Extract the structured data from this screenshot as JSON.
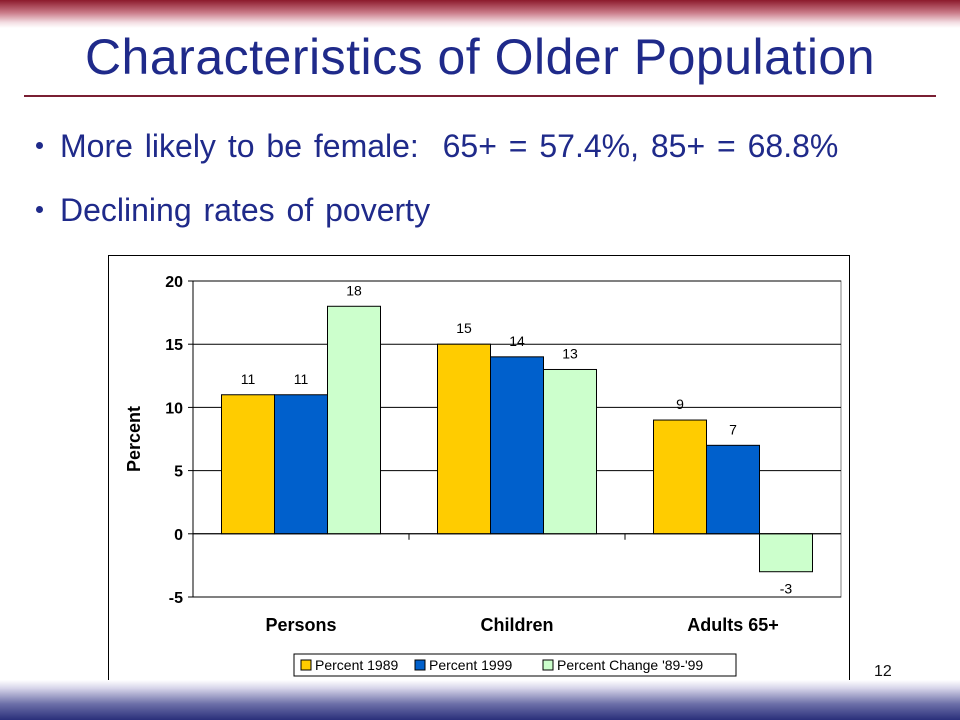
{
  "slide": {
    "title": "Characteristics of Older Population",
    "bullets": [
      "More likely to be female:  65+ = 57.4%, 85+ = 68.8%",
      "Declining rates of poverty"
    ],
    "page_number": "12"
  },
  "colors": {
    "title_text": "#1f2a8a",
    "rule": "#7a1f33",
    "series_1989": "#ffcc00",
    "series_1999": "#0060cc",
    "series_change": "#ccffcc"
  },
  "chart_data": {
    "type": "bar",
    "ylabel": "Percent",
    "ylim": [
      -5,
      20
    ],
    "yticks": [
      "-5",
      "0",
      "5",
      "10",
      "15",
      "20"
    ],
    "categories": [
      "Persons",
      "Children",
      "Adults 65+"
    ],
    "series": [
      {
        "name": "Percent 1989",
        "color": "#ffcc00",
        "values": [
          11,
          15,
          9
        ]
      },
      {
        "name": "Percent 1999",
        "color": "#0060cc",
        "values": [
          11,
          14,
          7
        ]
      },
      {
        "name": "Percent Change '89-'99",
        "color": "#ccffcc",
        "values": [
          18,
          13,
          -3
        ]
      }
    ],
    "data_labels": [
      [
        "11",
        "15",
        "9"
      ],
      [
        "11",
        "14",
        "7"
      ],
      [
        "18",
        "13",
        "-3"
      ]
    ],
    "grid": true,
    "legend_position": "bottom"
  }
}
